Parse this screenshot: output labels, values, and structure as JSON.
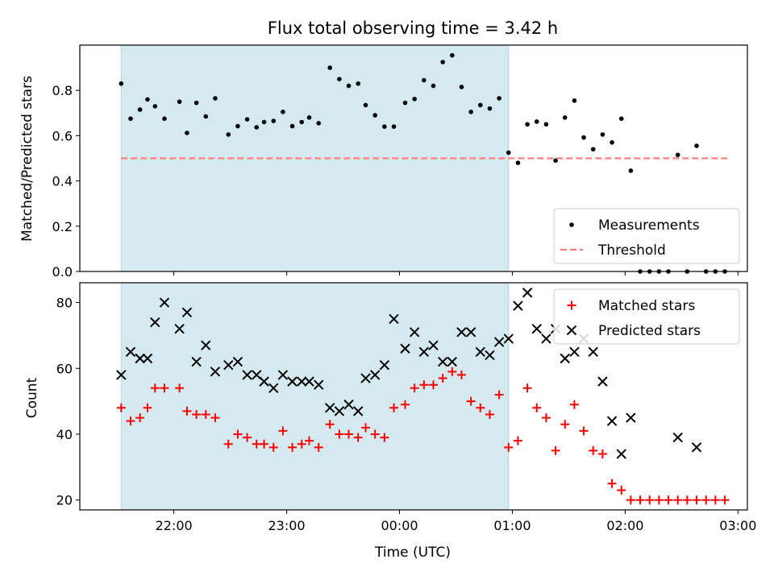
{
  "chart_data": {
    "title": "Flux total observing time = 3.42 h",
    "xlabel": "Time (UTC)",
    "x_unit": "UTC time (HH:MM), 21:32 to 02:55",
    "x_ticks": [
      "22:00",
      "23:00",
      "00:00",
      "01:00",
      "02:00",
      "03:00"
    ],
    "shaded_interval": [
      "21:32",
      "00:58"
    ],
    "shade_color": "#d4eaf0",
    "panels": [
      {
        "type": "scatter",
        "ylabel": "Matched/Predicted stars",
        "ylim": [
          0,
          1.0
        ],
        "y_ticks": [
          "0.0",
          "0.2",
          "0.4",
          "0.6",
          "0.8"
        ],
        "legend_position": "lower-right",
        "series": [
          {
            "name": "Measurements",
            "marker": "dot",
            "color": "#000000",
            "points": [
              [
                "21:32",
                0.83
              ],
              [
                "21:37",
                0.675
              ],
              [
                "21:42",
                0.715
              ],
              [
                "21:46",
                0.76
              ],
              [
                "21:50",
                0.73
              ],
              [
                "21:55",
                0.675
              ],
              [
                "22:03",
                0.75
              ],
              [
                "22:07",
                0.612
              ],
              [
                "22:12",
                0.745
              ],
              [
                "22:17",
                0.685
              ],
              [
                "22:22",
                0.765
              ],
              [
                "22:29",
                0.605
              ],
              [
                "22:34",
                0.642
              ],
              [
                "22:39",
                0.672
              ],
              [
                "22:44",
                0.637
              ],
              [
                "22:48",
                0.66
              ],
              [
                "22:53",
                0.665
              ],
              [
                "22:58",
                0.705
              ],
              [
                "23:03",
                0.642
              ],
              [
                "23:08",
                0.66
              ],
              [
                "23:12",
                0.68
              ],
              [
                "23:17",
                0.655
              ],
              [
                "23:23",
                0.9
              ],
              [
                "23:28",
                0.85
              ],
              [
                "23:33",
                0.82
              ],
              [
                "23:38",
                0.83
              ],
              [
                "23:42",
                0.735
              ],
              [
                "23:47",
                0.69
              ],
              [
                "23:52",
                0.64
              ],
              [
                "23:57",
                0.64
              ],
              [
                "00:03",
                0.745
              ],
              [
                "00:08",
                0.762
              ],
              [
                "00:13",
                0.845
              ],
              [
                "00:18",
                0.82
              ],
              [
                "00:23",
                0.925
              ],
              [
                "00:28",
                0.955
              ],
              [
                "00:33",
                0.815
              ],
              [
                "00:38",
                0.705
              ],
              [
                "00:43",
                0.735
              ],
              [
                "00:48",
                0.72
              ],
              [
                "00:53",
                0.765
              ],
              [
                "00:58",
                0.525
              ],
              [
                "01:03",
                0.48
              ],
              [
                "01:08",
                0.65
              ],
              [
                "01:13",
                0.662
              ],
              [
                "01:18",
                0.65
              ],
              [
                "01:23",
                0.49
              ],
              [
                "01:28",
                0.68
              ],
              [
                "01:33",
                0.755
              ],
              [
                "01:38",
                0.592
              ],
              [
                "01:43",
                0.54
              ],
              [
                "01:48",
                0.605
              ],
              [
                "01:53",
                0.57
              ],
              [
                "01:58",
                0.675
              ],
              [
                "02:03",
                0.445
              ],
              [
                "02:08",
                0.0
              ],
              [
                "02:13",
                0.0
              ],
              [
                "02:18",
                0.0
              ],
              [
                "02:23",
                0.0
              ],
              [
                "02:33",
                0.0
              ],
              [
                "02:28",
                0.515
              ],
              [
                "02:38",
                0.555
              ],
              [
                "02:43",
                0.0
              ],
              [
                "02:48",
                0.0
              ],
              [
                "02:53",
                0.0
              ]
            ]
          },
          {
            "name": "Threshold",
            "style": "dashed",
            "color": "#ff7f7f",
            "x": [
              "21:32",
              "02:55"
            ],
            "y": 0.5
          }
        ]
      },
      {
        "type": "scatter",
        "ylabel": "Count",
        "ylim": [
          17,
          86
        ],
        "y_ticks": [
          "20",
          "40",
          "60",
          "80"
        ],
        "legend_position": "upper-right",
        "series": [
          {
            "name": "Matched stars",
            "marker": "plus",
            "color": "#ff0000",
            "points": [
              [
                "21:32",
                48
              ],
              [
                "21:37",
                44
              ],
              [
                "21:42",
                45
              ],
              [
                "21:46",
                48
              ],
              [
                "21:50",
                54
              ],
              [
                "21:55",
                54
              ],
              [
                "22:03",
                54
              ],
              [
                "22:07",
                47
              ],
              [
                "22:12",
                46
              ],
              [
                "22:17",
                46
              ],
              [
                "22:22",
                45
              ],
              [
                "22:29",
                37
              ],
              [
                "22:34",
                40
              ],
              [
                "22:39",
                39
              ],
              [
                "22:44",
                37
              ],
              [
                "22:48",
                37
              ],
              [
                "22:53",
                36
              ],
              [
                "22:58",
                41
              ],
              [
                "23:03",
                36
              ],
              [
                "23:08",
                37
              ],
              [
                "23:12",
                38
              ],
              [
                "23:17",
                36
              ],
              [
                "23:23",
                43
              ],
              [
                "23:28",
                40
              ],
              [
                "23:33",
                40
              ],
              [
                "23:38",
                39
              ],
              [
                "23:42",
                42
              ],
              [
                "23:47",
                40
              ],
              [
                "23:52",
                39
              ],
              [
                "23:57",
                48
              ],
              [
                "00:03",
                49
              ],
              [
                "00:08",
                54
              ],
              [
                "00:13",
                55
              ],
              [
                "00:18",
                55
              ],
              [
                "00:23",
                57
              ],
              [
                "00:28",
                59
              ],
              [
                "00:33",
                58
              ],
              [
                "00:38",
                50
              ],
              [
                "00:43",
                48
              ],
              [
                "00:48",
                46
              ],
              [
                "00:53",
                52
              ],
              [
                "00:58",
                36
              ],
              [
                "01:03",
                38
              ],
              [
                "01:08",
                54
              ],
              [
                "01:13",
                48
              ],
              [
                "01:18",
                45
              ],
              [
                "01:23",
                35
              ],
              [
                "01:28",
                43
              ],
              [
                "01:33",
                49
              ],
              [
                "01:38",
                41
              ],
              [
                "01:43",
                35
              ],
              [
                "01:48",
                34
              ],
              [
                "01:53",
                25
              ],
              [
                "01:58",
                23
              ],
              [
                "02:03",
                20
              ],
              [
                "02:08",
                20
              ],
              [
                "02:13",
                20
              ],
              [
                "02:18",
                20
              ],
              [
                "02:23",
                20
              ],
              [
                "02:28",
                20
              ],
              [
                "02:33",
                20
              ],
              [
                "02:38",
                20
              ],
              [
                "02:43",
                20
              ],
              [
                "02:48",
                20
              ],
              [
                "02:53",
                20
              ]
            ]
          },
          {
            "name": "Predicted stars",
            "marker": "x",
            "color": "#000000",
            "points": [
              [
                "21:32",
                58
              ],
              [
                "21:37",
                65
              ],
              [
                "21:42",
                63
              ],
              [
                "21:46",
                63
              ],
              [
                "21:50",
                74
              ],
              [
                "21:55",
                80
              ],
              [
                "22:03",
                72
              ],
              [
                "22:07",
                77
              ],
              [
                "22:12",
                62
              ],
              [
                "22:17",
                67
              ],
              [
                "22:22",
                59
              ],
              [
                "22:29",
                61
              ],
              [
                "22:34",
                62
              ],
              [
                "22:39",
                58
              ],
              [
                "22:44",
                58
              ],
              [
                "22:48",
                56
              ],
              [
                "22:53",
                54
              ],
              [
                "22:58",
                58
              ],
              [
                "23:03",
                56
              ],
              [
                "23:08",
                56
              ],
              [
                "23:12",
                56
              ],
              [
                "23:17",
                55
              ],
              [
                "23:23",
                48
              ],
              [
                "23:28",
                47
              ],
              [
                "23:33",
                49
              ],
              [
                "23:38",
                47
              ],
              [
                "23:42",
                57
              ],
              [
                "23:47",
                58
              ],
              [
                "23:52",
                61
              ],
              [
                "23:57",
                75
              ],
              [
                "00:03",
                66
              ],
              [
                "00:08",
                71
              ],
              [
                "00:13",
                65
              ],
              [
                "00:18",
                67
              ],
              [
                "00:23",
                62
              ],
              [
                "00:28",
                62
              ],
              [
                "00:33",
                71
              ],
              [
                "00:38",
                71
              ],
              [
                "00:43",
                65
              ],
              [
                "00:48",
                64
              ],
              [
                "00:53",
                68
              ],
              [
                "00:58",
                69
              ],
              [
                "01:03",
                79
              ],
              [
                "01:08",
                83
              ],
              [
                "01:13",
                72
              ],
              [
                "01:18",
                69
              ],
              [
                "01:23",
                72
              ],
              [
                "01:28",
                63
              ],
              [
                "01:33",
                65
              ],
              [
                "01:38",
                69
              ],
              [
                "01:43",
                65
              ],
              [
                "01:48",
                56
              ],
              [
                "01:53",
                44
              ],
              [
                "01:58",
                34
              ],
              [
                "02:03",
                45
              ],
              [
                "02:28",
                39
              ],
              [
                "02:38",
                36
              ]
            ]
          }
        ]
      }
    ]
  }
}
